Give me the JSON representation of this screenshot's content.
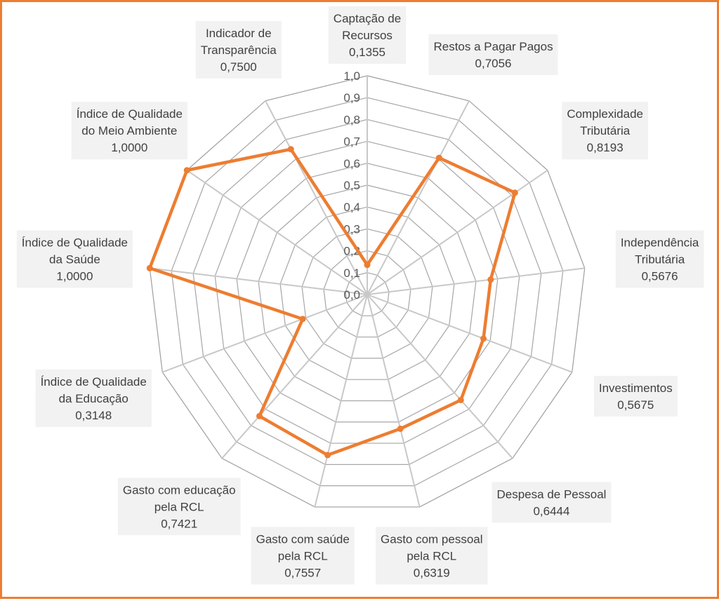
{
  "chart_data": {
    "type": "radar",
    "colors": {
      "series": "#ED7D31",
      "grid": "#A6A6A6",
      "axis": "#C8C8C8",
      "frame": "#ED7D31",
      "label_bg": "#F2F2F2"
    },
    "rlim": [
      0,
      1
    ],
    "ticks": [
      "0,0",
      "0,1",
      "0,2",
      "0,3",
      "0,4",
      "0,5",
      "0,6",
      "0,7",
      "0,8",
      "0,9",
      "1,0"
    ],
    "grid": true,
    "legend": "none",
    "categories": [
      {
        "label": [
          "Captação de",
          "Recursos"
        ],
        "value": 0.1355,
        "value_label": "0,1355"
      },
      {
        "label": [
          "Restos a Pagar Pagos"
        ],
        "value": 0.7056,
        "value_label": "0,7056"
      },
      {
        "label": [
          "Complexidade",
          "Tributária"
        ],
        "value": 0.8193,
        "value_label": "0,8193"
      },
      {
        "label": [
          "Independência",
          "Tributária"
        ],
        "value": 0.5676,
        "value_label": "0,5676"
      },
      {
        "label": [
          "Investimentos"
        ],
        "value": 0.5675,
        "value_label": "0,5675"
      },
      {
        "label": [
          "Despesa de Pessoal"
        ],
        "value": 0.6444,
        "value_label": "0,6444"
      },
      {
        "label": [
          "Gasto com pessoal",
          "pela RCL"
        ],
        "value": 0.6319,
        "value_label": "0,6319"
      },
      {
        "label": [
          "Gasto com saúde",
          "pela RCL"
        ],
        "value": 0.7557,
        "value_label": "0,7557"
      },
      {
        "label": [
          "Gasto com educação",
          "pela RCL"
        ],
        "value": 0.7421,
        "value_label": "0,7421"
      },
      {
        "label": [
          "Índice de Qualidade",
          "da Educação"
        ],
        "value": 0.3148,
        "value_label": "0,3148"
      },
      {
        "label": [
          "Índice de Qualidade",
          "da Saúde"
        ],
        "value": 1.0,
        "value_label": "1,0000"
      },
      {
        "label": [
          "Índice de Qualidade",
          "do Meio Ambiente"
        ],
        "value": 1.0,
        "value_label": "1,0000"
      },
      {
        "label": [
          "Indicador de",
          "Transparência"
        ],
        "value": 0.75,
        "value_label": "0,7500"
      }
    ]
  }
}
